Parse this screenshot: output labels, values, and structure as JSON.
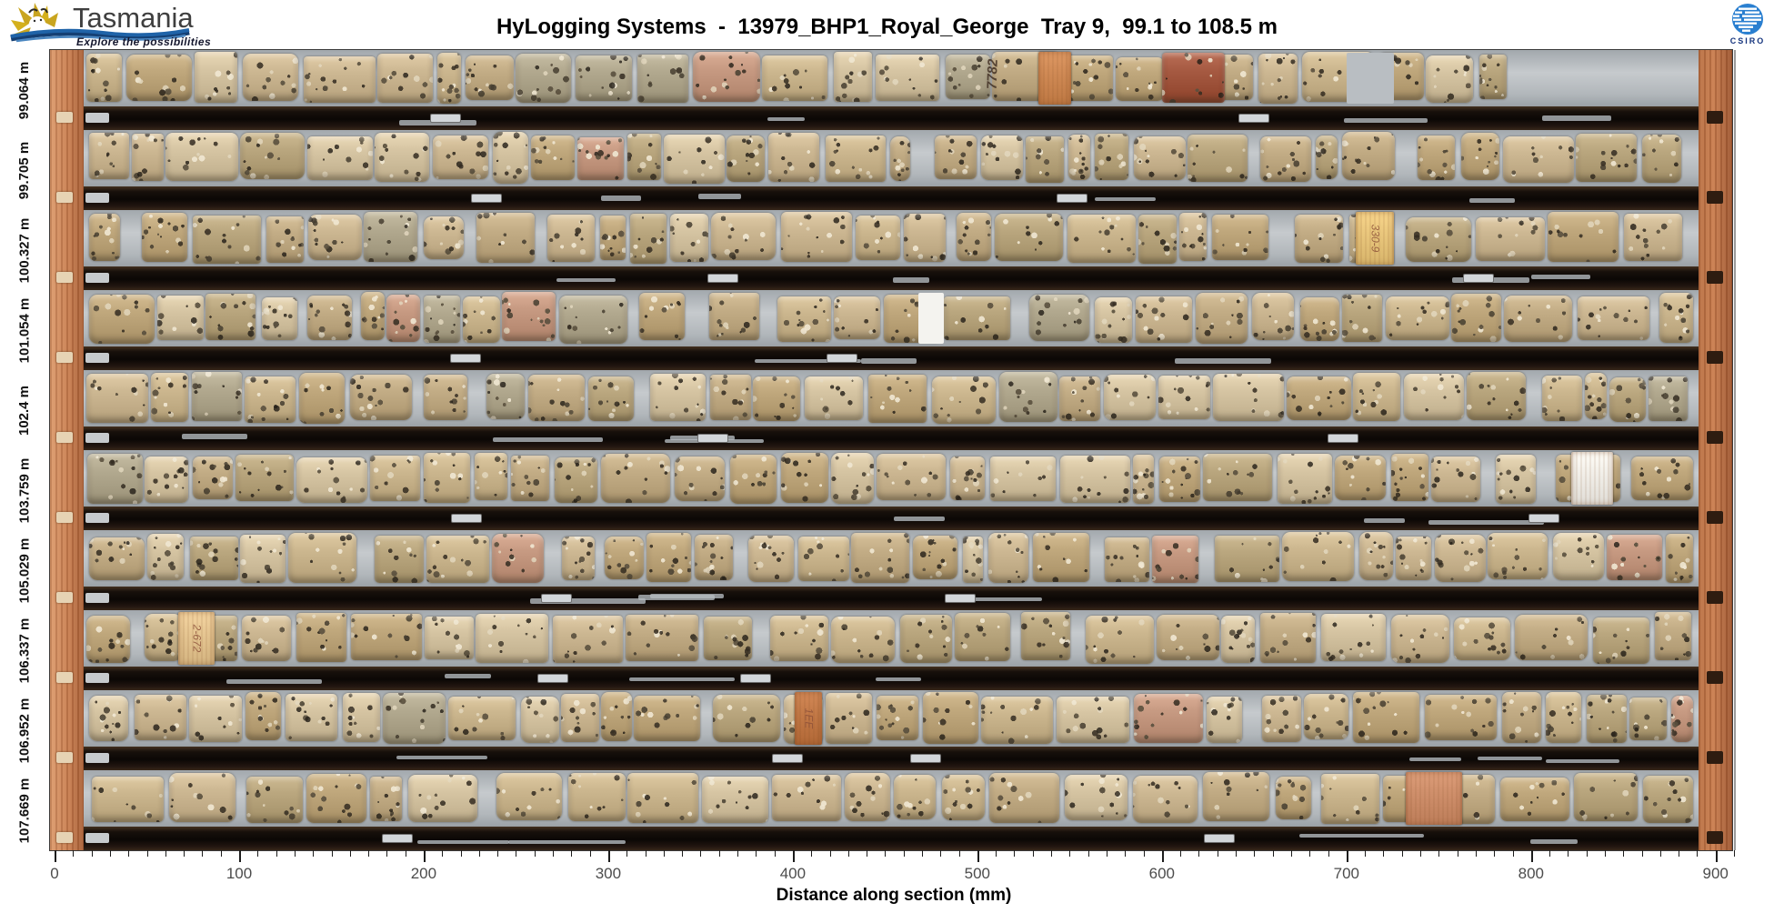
{
  "chart_data": {
    "type": "table",
    "title": "HyLogging Systems - 13979_BHP1_Royal_George Tray 9, 99.1 to 108.5 m",
    "xlabel": "Distance along section (mm)",
    "x_ticks_mm": [
      0,
      100,
      200,
      300,
      400,
      500,
      600,
      700,
      800,
      900
    ],
    "x_range_mm": [
      0,
      910
    ],
    "tray_number": 9,
    "depth_range_m": [
      99.1,
      108.5
    ],
    "row_start_depths_m": [
      99.064,
      99.705,
      100.327,
      101.054,
      102.4,
      103.759,
      105.029,
      106.337,
      106.952,
      107.669
    ]
  },
  "header": {
    "title": "HyLogging Systems  -  13979_BHP1_Royal_George  Tray 9,  99.1 to 108.5 m"
  },
  "tasmania_logo": {
    "name": "Tasmania",
    "tagline": "Explore the possibilities"
  },
  "csiro_logo": {
    "name": "CSIRO"
  },
  "axis": {
    "title": "Distance along section (mm)",
    "tick_labels": [
      "0",
      "100",
      "200",
      "300",
      "400",
      "500",
      "600",
      "700",
      "800",
      "900"
    ],
    "major_step_mm": 100,
    "minor_step_mm": 10,
    "max_mm": 910
  },
  "tray": {
    "rows": [
      {
        "depth_label": "99.064 m",
        "core_end_mm": 795,
        "markers": [
          {
            "type": "handwriting",
            "mm": 500,
            "text": "7782"
          },
          {
            "type": "block",
            "mm": 533,
            "w_mm": 18,
            "color": "#d08a55"
          },
          {
            "type": "tint",
            "mm": 600,
            "w_mm": 34,
            "color": "#a65a42"
          },
          {
            "type": "gap",
            "mm": 700,
            "w_mm": 26,
            "color": "#b9bec2"
          }
        ]
      },
      {
        "depth_label": "99.705 m",
        "markers": []
      },
      {
        "depth_label": "100.327 m",
        "markers": [
          {
            "type": "block",
            "mm": 705,
            "w_mm": 21,
            "color": "#eac77d",
            "text": "330-9"
          }
        ]
      },
      {
        "depth_label": "101.054 m",
        "markers": [
          {
            "type": "gap",
            "mm": 468,
            "w_mm": 14,
            "color": "#f4f3ef"
          }
        ]
      },
      {
        "depth_label": "102.4 m",
        "markers": []
      },
      {
        "depth_label": "103.759 m",
        "markers": [
          {
            "type": "block",
            "mm": 822,
            "w_mm": 23,
            "color": "#f2efe9"
          }
        ]
      },
      {
        "depth_label": "105.029 m",
        "markers": []
      },
      {
        "depth_label": "106.337 m",
        "markers": [
          {
            "type": "block",
            "mm": 67,
            "w_mm": 20,
            "color": "#e6c692",
            "text": "2-672"
          }
        ]
      },
      {
        "depth_label": "106.952 m",
        "markers": [
          {
            "type": "block",
            "mm": 401,
            "w_mm": 15,
            "color": "#c47a48",
            "text": "1EE"
          }
        ]
      },
      {
        "depth_label": "107.669 m",
        "markers": [
          {
            "type": "block",
            "mm": 732,
            "w_mm": 31,
            "color": "#cf8f6b"
          }
        ]
      }
    ]
  },
  "colors": {
    "core_tan": "#c9b48c",
    "channel_gray": "#b9bec2",
    "divider_dark": "#140e09",
    "wood_frame": "#c47a4e",
    "csiro_blue": "#2a7fd0",
    "tasmania_gold": "#c9a51f",
    "tasmania_wave_blue": "#1f63a8"
  }
}
